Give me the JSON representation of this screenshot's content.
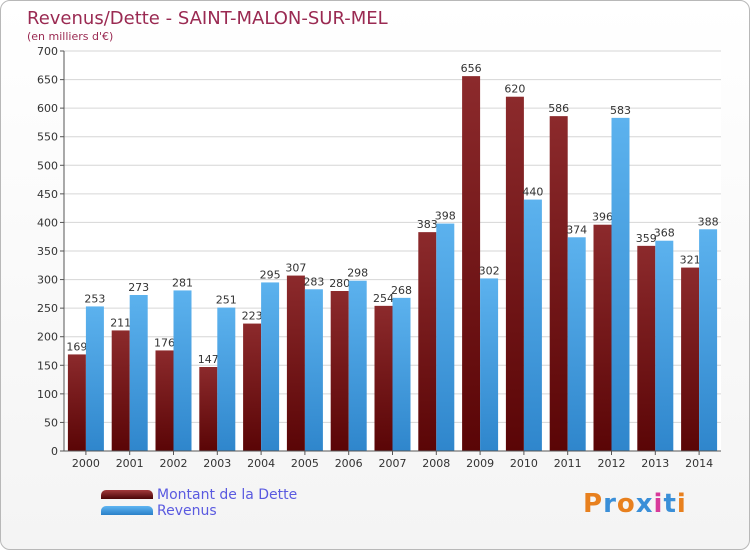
{
  "chart_data": {
    "type": "bar",
    "title": "Revenus/Dette - SAINT-MALON-SUR-MEL",
    "subtitle": "(en milliers d'€)",
    "categories": [
      "2000",
      "2001",
      "2002",
      "2003",
      "2004",
      "2005",
      "2006",
      "2007",
      "2008",
      "2009",
      "2010",
      "2011",
      "2012",
      "2013",
      "2014"
    ],
    "series": [
      {
        "name": "Montant de la Dette",
        "color": "#7a1416",
        "values": [
          169,
          211,
          176,
          147,
          223,
          307,
          280,
          254,
          383,
          656,
          620,
          586,
          396,
          359,
          321
        ]
      },
      {
        "name": "Revenus",
        "color": "#4aa3e6",
        "values": [
          253,
          273,
          281,
          251,
          295,
          283,
          298,
          268,
          398,
          302,
          440,
          374,
          583,
          368,
          388
        ]
      }
    ],
    "ylim": [
      0,
      700
    ],
    "yticks": [
      0,
      50,
      100,
      150,
      200,
      250,
      300,
      350,
      400,
      450,
      500,
      550,
      600,
      650,
      700
    ],
    "grid": true,
    "legend_position": "bottom-left"
  },
  "logo": {
    "text": "Proxiti",
    "colors": [
      "#e8801e",
      "#3a8fd8",
      "#e8801e",
      "#3a8fd8",
      "#d83a9a",
      "#3a8fd8",
      "#e8801e"
    ]
  }
}
